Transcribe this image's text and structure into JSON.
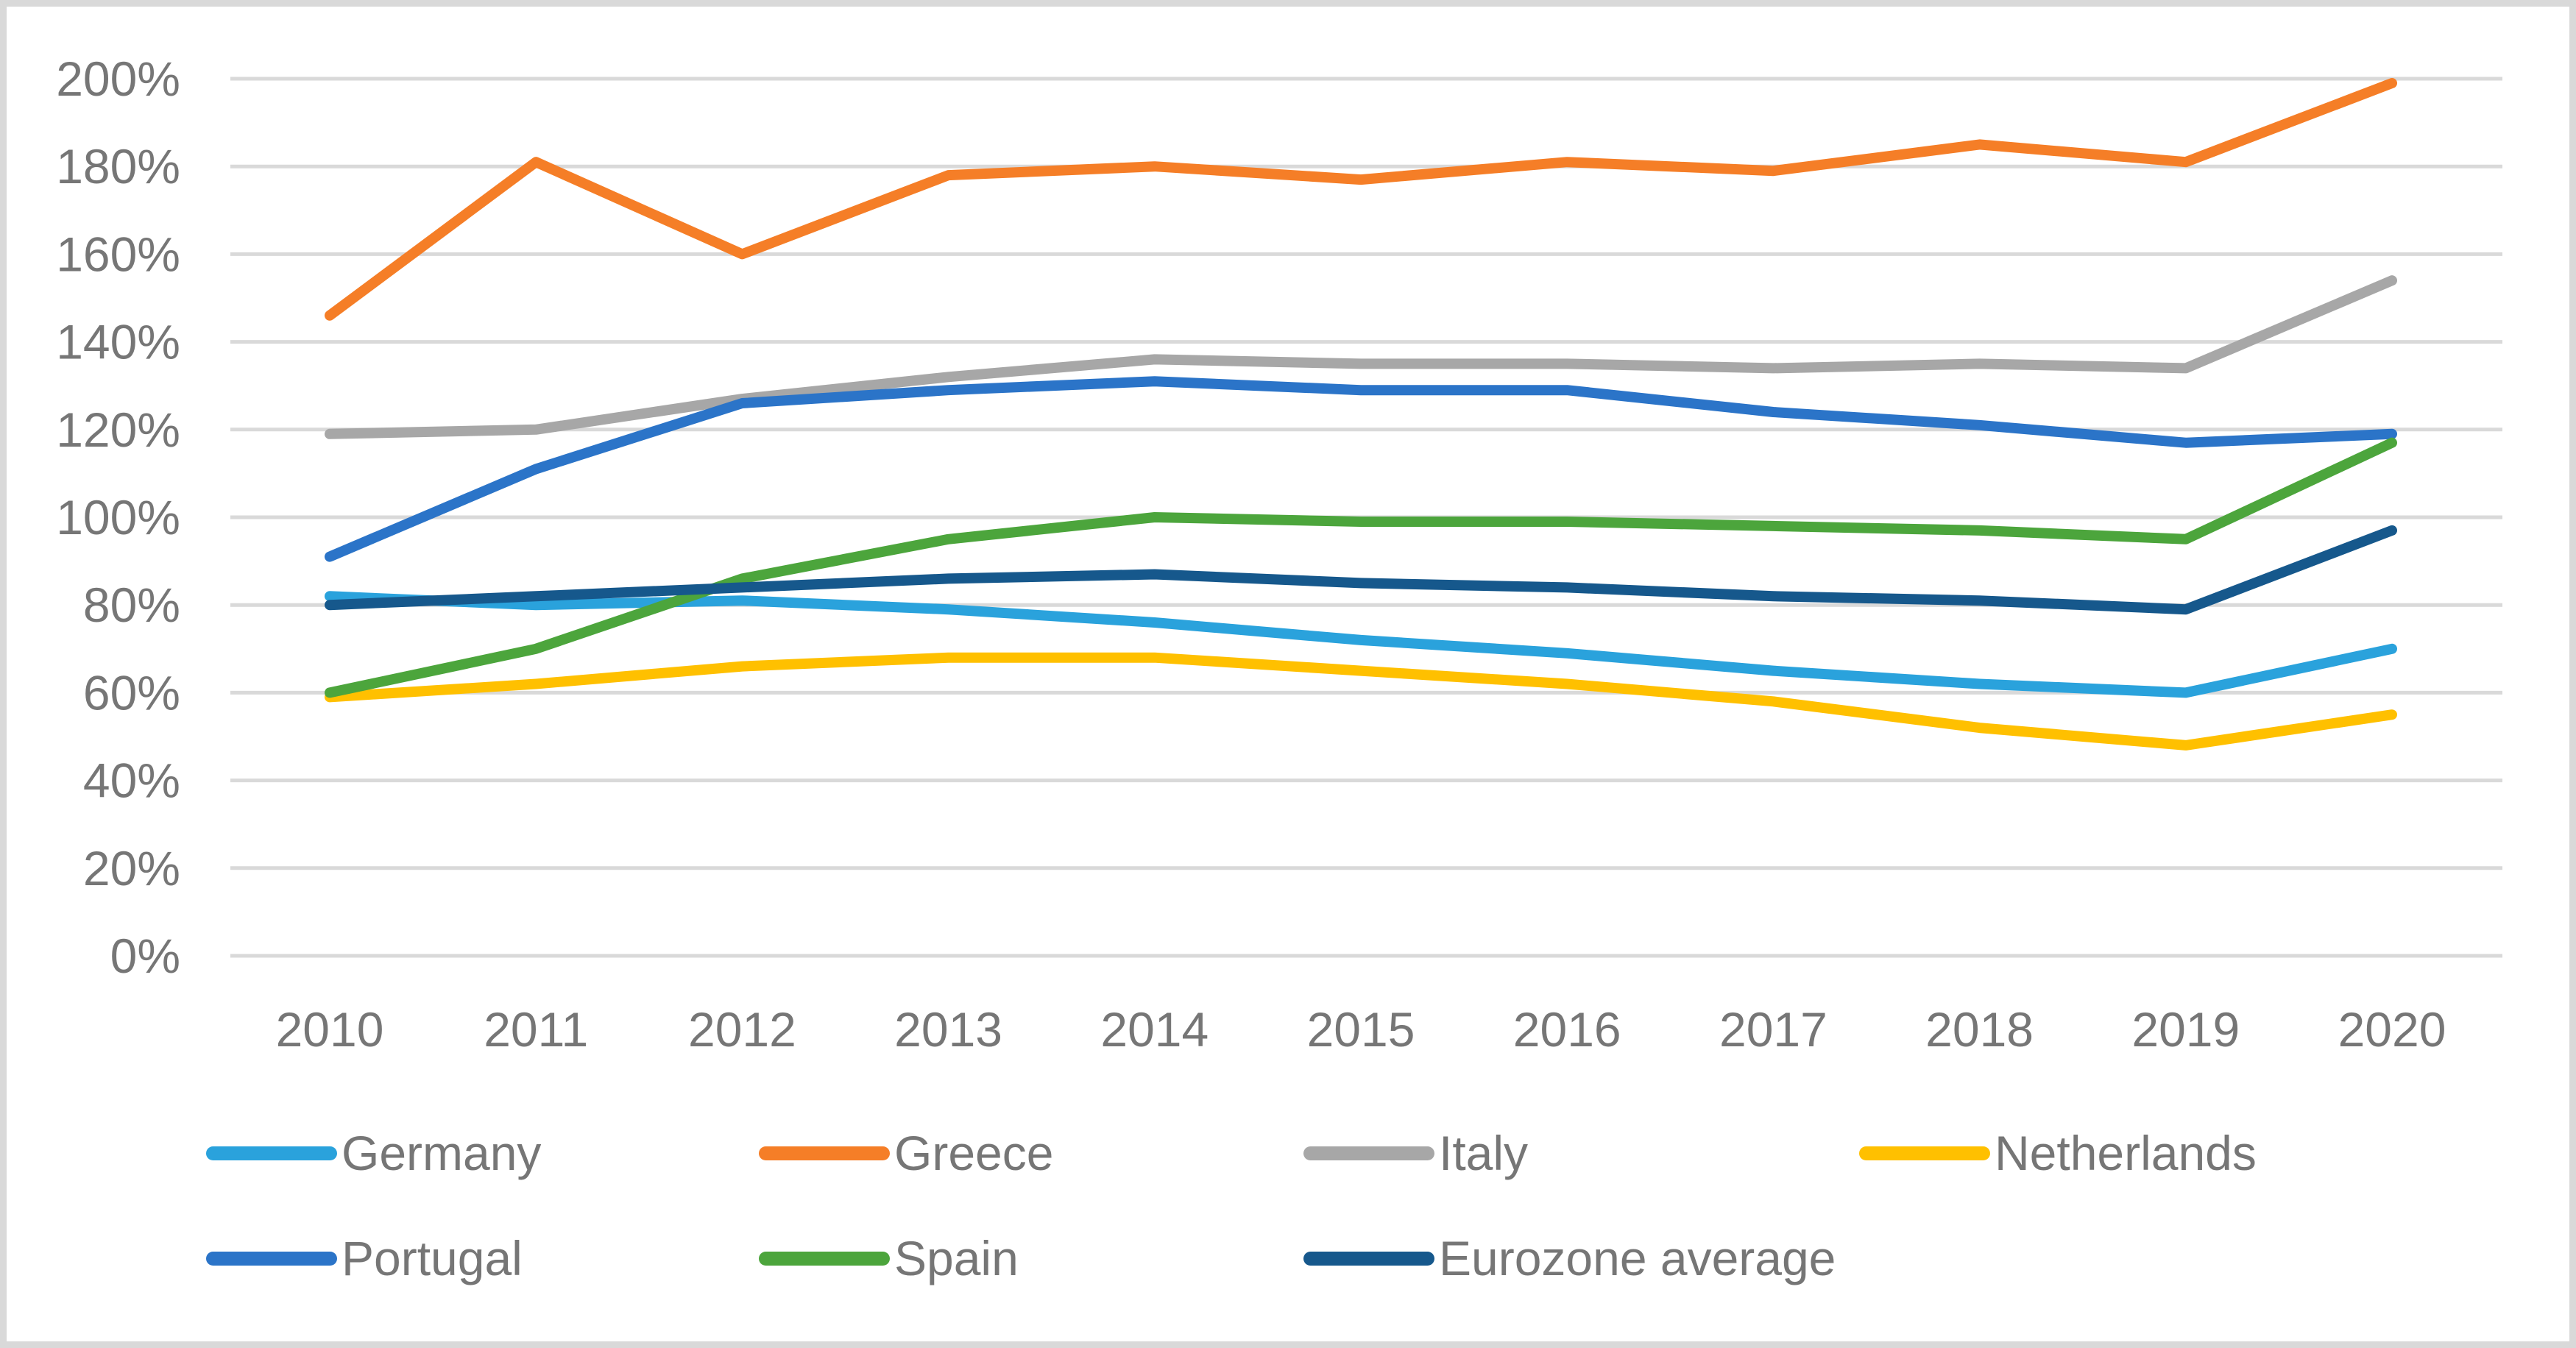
{
  "chart_data": {
    "type": "line",
    "x_labels": [
      "2010",
      "2011",
      "2012",
      "2013",
      "2014",
      "2015",
      "2016",
      "2017",
      "2018",
      "2019",
      "2020"
    ],
    "y_tick_labels": [
      "200%",
      "180%",
      "160%",
      "140%",
      "120%",
      "100%",
      "80%",
      "60%",
      "40%",
      "20%",
      "0%"
    ],
    "ylim": [
      0,
      200
    ],
    "y_tick_step": 20,
    "grid": true,
    "legend_position": "bottom",
    "series": [
      {
        "name": "Germany",
        "color": "#2AA2DC",
        "values": [
          82,
          80,
          81,
          79,
          76,
          72,
          69,
          65,
          62,
          60,
          70
        ]
      },
      {
        "name": "Greece",
        "color": "#F57E27",
        "values": [
          146,
          181,
          160,
          178,
          180,
          177,
          181,
          179,
          185,
          181,
          199
        ]
      },
      {
        "name": "Italy",
        "color": "#A7A7A7",
        "values": [
          119,
          120,
          127,
          132,
          136,
          135,
          135,
          134,
          135,
          134,
          154
        ]
      },
      {
        "name": "Netherlands",
        "color": "#FFC000",
        "values": [
          59,
          62,
          66,
          68,
          68,
          65,
          62,
          58,
          52,
          48,
          55
        ]
      },
      {
        "name": "Portugal",
        "color": "#2B74C8",
        "values": [
          91,
          111,
          126,
          129,
          131,
          129,
          129,
          124,
          121,
          117,
          119
        ]
      },
      {
        "name": "Spain",
        "color": "#4CA53C",
        "values": [
          60,
          70,
          86,
          95,
          100,
          99,
          99,
          98,
          97,
          95,
          117
        ]
      },
      {
        "name": "Eurozone average",
        "color": "#16588C",
        "values": [
          80,
          82,
          84,
          86,
          87,
          85,
          84,
          82,
          81,
          79,
          97
        ]
      }
    ],
    "legend_rows": [
      [
        0,
        1,
        2,
        3
      ],
      [
        4,
        5,
        6
      ]
    ]
  },
  "styles": {
    "gridline_color": "#D9D9D9",
    "axis_text_color": "#767676",
    "legend_text_color": "#767676",
    "background": "#FFFFFF",
    "border_color": "#D9D9D9"
  }
}
